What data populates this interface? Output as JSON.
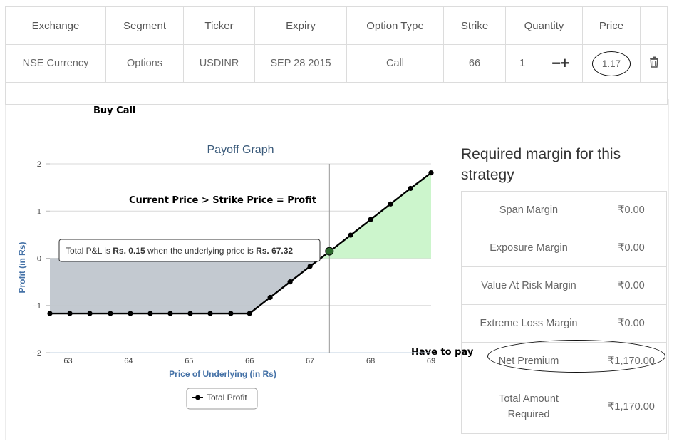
{
  "positions": {
    "headers": [
      "Exchange",
      "Segment",
      "Ticker",
      "Expiry",
      "Option Type",
      "Strike",
      "Quantity",
      "Price",
      ""
    ],
    "row": {
      "exchange": "NSE Currency",
      "segment": "Options",
      "ticker": "USDINR",
      "expiry": "SEP 28 2015",
      "option_type": "Call",
      "strike": "66",
      "quantity": "1",
      "qty_minus": "−",
      "qty_plus": "+",
      "price": "1.17"
    }
  },
  "annotations": {
    "buy_call": "Buy Call",
    "profit_note": "Current Price > Strike Price = Profit",
    "have_to_pay": "Have to pay"
  },
  "tooltip": {
    "prefix": "Total P&L is ",
    "pl_value": "Rs. 0.15",
    "middle": " when the underlying price is ",
    "price_value": "Rs. 67.32"
  },
  "chart_data": {
    "type": "line",
    "title": "Payoff Graph",
    "xlabel": "Price of Underlying (in Rs)",
    "ylabel": "Profit (in Rs)",
    "xlim": [
      62.7,
      69.0
    ],
    "ylim": [
      -2,
      2
    ],
    "x_ticks": [
      "63",
      "64",
      "65",
      "66",
      "67",
      "68",
      "69"
    ],
    "y_ticks": [
      "2",
      "1",
      "0",
      "−1",
      "−2"
    ],
    "legend": "Total Profit",
    "legend_position": "bottom",
    "crosshair_x": 67.32,
    "series": [
      {
        "name": "Total Profit",
        "color": "#000000",
        "x": [
          62.7,
          63.03,
          63.36,
          63.7,
          64.03,
          64.36,
          64.69,
          65.02,
          65.35,
          65.69,
          66.0,
          66.34,
          66.67,
          67.0,
          67.33,
          67.67,
          68.0,
          68.33,
          68.66,
          69.0
        ],
        "y": [
          -1.17,
          -1.17,
          -1.17,
          -1.17,
          -1.17,
          -1.17,
          -1.17,
          -1.17,
          -1.17,
          -1.17,
          -1.17,
          -0.83,
          -0.5,
          -0.17,
          0.15,
          0.49,
          0.82,
          1.15,
          1.48,
          1.81
        ]
      }
    ],
    "loss_fill": "#c0c6cd",
    "profit_fill": "#ccf5cc",
    "axis_label_color": "#4572a7"
  },
  "margin": {
    "title": "Required margin for this strategy",
    "rows": [
      {
        "label": "Span Margin",
        "value": "₹0.00"
      },
      {
        "label": "Exposure Margin",
        "value": "₹0.00"
      },
      {
        "label": "Value At Risk Margin",
        "value": "₹0.00"
      },
      {
        "label": "Extreme Loss Margin",
        "value": "₹0.00"
      },
      {
        "label": "Net Premium",
        "value": "₹1,170.00"
      },
      {
        "label": "Total Amount Required",
        "value": "₹1,170.00"
      }
    ]
  }
}
